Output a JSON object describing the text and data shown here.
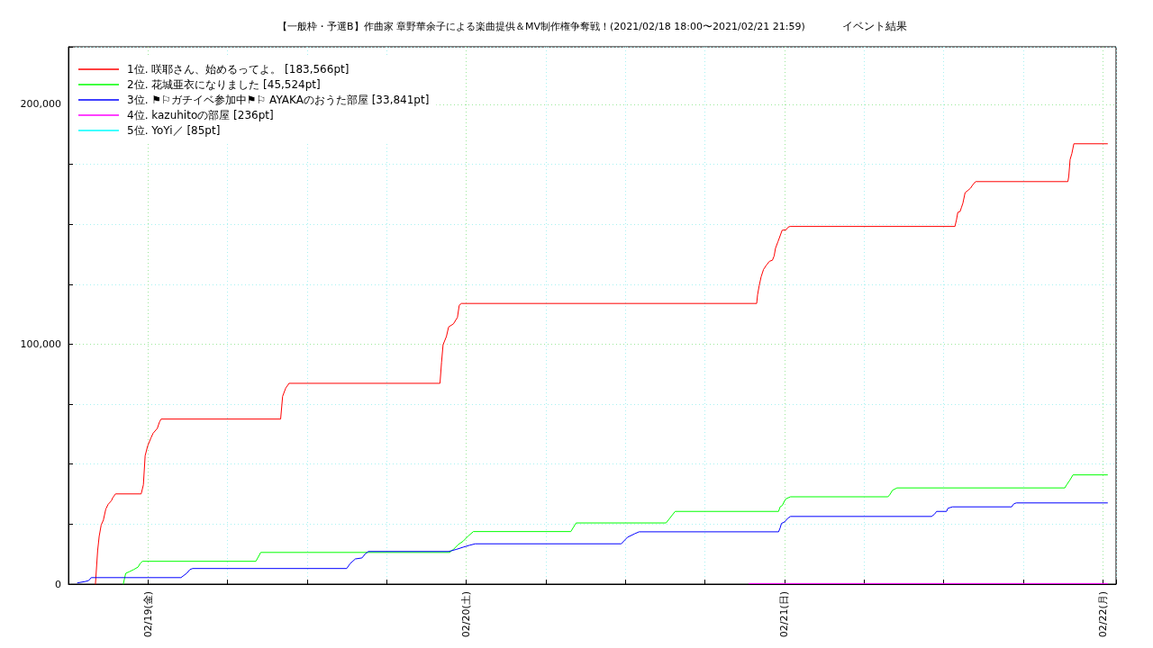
{
  "chart_data": {
    "type": "line",
    "title": "【一般枠・予選B】作曲家 章野華余子による楽曲提供＆MV制作権争奪戦！(2021/02/18 18:00〜2021/02/21 21:59)",
    "subtitle": "イベント結果",
    "xlim": [
      "2021-02-18T18:00",
      "2021-02-22T01:00"
    ],
    "xticks": [
      {
        "value": "2021-02-19",
        "label": "02/19(金)"
      },
      {
        "value": "2021-02-19T06:00",
        "label": null
      },
      {
        "value": "2021-02-19T12:00",
        "label": null
      },
      {
        "value": "2021-02-19T18:00",
        "label": null
      },
      {
        "value": "2021-02-20",
        "label": "02/20(土)"
      },
      {
        "value": "2021-02-20T06:00",
        "label": null
      },
      {
        "value": "2021-02-20T12:00",
        "label": null
      },
      {
        "value": "2021-02-20T18:00",
        "label": null
      },
      {
        "value": "2021-02-21",
        "label": "02/21(日)"
      },
      {
        "value": "2021-02-21T06:00",
        "label": null
      },
      {
        "value": "2021-02-21T12:00",
        "label": null
      },
      {
        "value": "2021-02-21T18:00",
        "label": null
      },
      {
        "value": "2021-02-22",
        "label": "02/22(月)"
      }
    ],
    "ylim": [
      0,
      224000
    ],
    "yticks": [
      0,
      {
        "value": 25000,
        "label": null
      },
      {
        "value": 50000,
        "label": null
      },
      {
        "value": 75000,
        "label": null
      },
      {
        "value": 100000,
        "label": "100,000"
      },
      {
        "value": 125000,
        "label": null
      },
      {
        "value": 150000,
        "label": null
      },
      {
        "value": 175000,
        "label": null
      },
      {
        "value": 200000,
        "label": "200,000"
      }
    ],
    "grid": true,
    "legend": "top left",
    "series": [
      {
        "name": "1位. 咲耶さん、始めるってよ。 [183,566pt]",
        "color": "#ff0000",
        "x": [
          "2021-02-18T20:02",
          "2021-02-18T20:12",
          "2021-02-18T20:19",
          "2021-02-18T20:28",
          "2021-02-18T20:38",
          "2021-02-18T20:49",
          "2021-02-18T21:00",
          "2021-02-18T21:14",
          "2021-02-18T21:21",
          "2021-02-18T21:33",
          "2021-02-18T23:29",
          "2021-02-18T23:39",
          "2021-02-18T23:47",
          "2021-02-18T23:58",
          "2021-02-19T00:13",
          "2021-02-19T00:23",
          "2021-02-19T00:42",
          "2021-02-19T00:52",
          "2021-02-19T00:59",
          "2021-02-19T10:00",
          "2021-02-19T10:09",
          "2021-02-19T10:23",
          "2021-02-19T10:38",
          "2021-02-19T22:01",
          "2021-02-19T22:08",
          "2021-02-19T22:15",
          "2021-02-19T22:30",
          "2021-02-19T22:40",
          "2021-02-19T23:02",
          "2021-02-19T23:20",
          "2021-02-19T23:28",
          "2021-02-19T23:38",
          "2021-02-20T21:54",
          "2021-02-20T21:58",
          "2021-02-20T22:05",
          "2021-02-20T22:14",
          "2021-02-20T22:25",
          "2021-02-20T22:39",
          "2021-02-20T22:52",
          "2021-02-20T23:05",
          "2021-02-20T23:13",
          "2021-02-20T23:19",
          "2021-02-20T23:30",
          "2021-02-20T23:40",
          "2021-02-20T23:49",
          "2021-02-21T00:07",
          "2021-02-21T00:16",
          "2021-02-21T00:25",
          "2021-02-21T12:51",
          "2021-02-21T12:58",
          "2021-02-21T13:04",
          "2021-02-21T13:14",
          "2021-02-21T13:20",
          "2021-02-21T13:27",
          "2021-02-21T13:37",
          "2021-02-21T13:48",
          "2021-02-21T14:01",
          "2021-02-21T14:15",
          "2021-02-21T14:25",
          "2021-02-21T21:22",
          "2021-02-21T21:26",
          "2021-02-21T21:32",
          "2021-02-21T21:40",
          "2021-02-21T21:49",
          "2021-02-22T00:21"
        ],
        "values": [
          0,
          13900,
          19900,
          24600,
          26700,
          31300,
          33300,
          34700,
          36100,
          37600,
          37600,
          41400,
          53500,
          57500,
          60900,
          62900,
          64900,
          67600,
          68800,
          68800,
          78300,
          81700,
          83700,
          83700,
          92400,
          99800,
          103200,
          107200,
          108500,
          111200,
          116200,
          117000,
          117000,
          120600,
          124300,
          128100,
          131200,
          133100,
          134600,
          135000,
          136800,
          140000,
          142700,
          145200,
          147500,
          147700,
          148800,
          149100,
          149100,
          151900,
          155000,
          155300,
          156900,
          158800,
          163200,
          164000,
          165000,
          166900,
          167800,
          167800,
          170000,
          177000,
          179500,
          183566,
          183566
        ]
      },
      {
        "name": "2位. 花城亜衣になりました [45,524pt]",
        "color": "#00ff00",
        "x": [
          "2021-02-18T22:08",
          "2021-02-18T22:19",
          "2021-02-18T22:34",
          "2021-02-18T22:56",
          "2021-02-18T23:15",
          "2021-02-18T23:25",
          "2021-02-18T23:35",
          "2021-02-19T08:08",
          "2021-02-19T08:30",
          "2021-02-19T22:44",
          "2021-02-19T23:02",
          "2021-02-19T23:24",
          "2021-02-19T23:46",
          "2021-02-20T00:07",
          "2021-02-20T00:32",
          "2021-02-20T07:53",
          "2021-02-20T08:17",
          "2021-02-20T15:04",
          "2021-02-20T15:45",
          "2021-02-20T23:33",
          "2021-02-20T23:40",
          "2021-02-20T23:50",
          "2021-02-21T00:00",
          "2021-02-21T00:07",
          "2021-02-21T00:27",
          "2021-02-21T07:48",
          "2021-02-21T07:58",
          "2021-02-21T08:08",
          "2021-02-21T08:29",
          "2021-02-21T21:08",
          "2021-02-21T21:18",
          "2021-02-21T21:32",
          "2021-02-21T21:45",
          "2021-02-22T00:21"
        ],
        "values": [
          0,
          4500,
          5100,
          6100,
          7100,
          8700,
          9500,
          9500,
          13200,
          13200,
          14500,
          16500,
          17900,
          19900,
          21900,
          21900,
          25500,
          25500,
          30300,
          30300,
          32200,
          32800,
          34700,
          35600,
          36400,
          36400,
          37500,
          39100,
          40100,
          40100,
          41600,
          43500,
          45524,
          45524
        ]
      },
      {
        "name": "3位. ⚑⚐ガチイベ参加中⚑⚐ AYAKAのおうた部屋 [33,841pt]",
        "color": "#0000ff",
        "x": [
          "2021-02-18T18:41",
          "2021-02-18T19:17",
          "2021-02-18T19:32",
          "2021-02-18T19:43",
          "2021-02-19T02:29",
          "2021-02-19T02:55",
          "2021-02-19T03:10",
          "2021-02-19T03:22",
          "2021-02-19T14:59",
          "2021-02-19T15:14",
          "2021-02-19T15:38",
          "2021-02-19T16:08",
          "2021-02-19T16:22",
          "2021-02-19T16:37",
          "2021-02-19T22:40",
          "2021-02-19T23:16",
          "2021-02-19T23:46",
          "2021-02-20T00:15",
          "2021-02-20T00:41",
          "2021-02-20T11:41",
          "2021-02-20T12:09",
          "2021-02-20T12:42",
          "2021-02-20T13:02",
          "2021-02-20T23:33",
          "2021-02-20T23:40",
          "2021-02-20T23:46",
          "2021-02-21T00:00",
          "2021-02-21T00:14",
          "2021-02-21T00:27",
          "2021-02-21T11:05",
          "2021-02-21T11:18",
          "2021-02-21T11:28",
          "2021-02-21T12:13",
          "2021-02-21T12:19",
          "2021-02-21T12:40",
          "2021-02-21T17:07",
          "2021-02-21T17:18",
          "2021-02-21T17:29",
          "2021-02-22T00:21"
        ],
        "values": [
          500,
          1100,
          1500,
          2700,
          2700,
          4500,
          6100,
          6500,
          6500,
          8500,
          10500,
          10900,
          12500,
          13600,
          13600,
          14500,
          15400,
          16200,
          16800,
          16800,
          19500,
          21000,
          21800,
          21800,
          23400,
          25300,
          25900,
          27400,
          28200,
          28200,
          29100,
          30300,
          30300,
          31600,
          32200,
          32200,
          33500,
          33841,
          33841
        ]
      },
      {
        "name": "4位. kazuhitoの部屋 [236pt]",
        "color": "#ff00ff",
        "x": [
          "2021-02-20T21:19",
          "2021-02-22T00:21"
        ],
        "values": [
          236,
          236
        ]
      },
      {
        "name": "5位. YoYi／ [85pt]",
        "color": "#00ffff"
      }
    ]
  }
}
